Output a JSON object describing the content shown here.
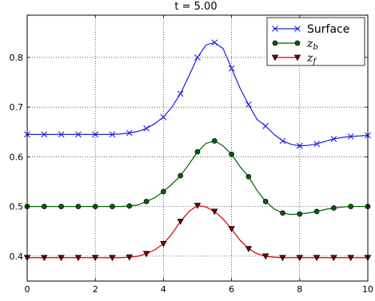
{
  "chart_data": {
    "type": "line",
    "title": "t = 5.00",
    "xlabel": "",
    "ylabel": "",
    "xlim": [
      0,
      10
    ],
    "ylim": [
      0.35,
      0.885
    ],
    "xticks": [
      0,
      2,
      4,
      6,
      8,
      10
    ],
    "yticks": [
      0.4,
      0.5,
      0.6,
      0.7,
      0.8
    ],
    "grid": true,
    "grid_style": "dotted",
    "legend_position": "top-right",
    "x": [
      0.0,
      0.25,
      0.5,
      0.75,
      1.0,
      1.25,
      1.5,
      1.75,
      2.0,
      2.25,
      2.5,
      2.75,
      3.0,
      3.25,
      3.5,
      3.75,
      4.0,
      4.25,
      4.5,
      4.75,
      5.0,
      5.25,
      5.5,
      5.75,
      6.0,
      6.25,
      6.5,
      6.75,
      7.0,
      7.25,
      7.5,
      7.75,
      8.0,
      8.25,
      8.5,
      8.75,
      9.0,
      9.25,
      9.5,
      9.75,
      10.0
    ],
    "series": [
      {
        "name": "Surface",
        "color": "#1f1fe0",
        "marker": "x",
        "marker_every": 2,
        "values": [
          0.645,
          0.645,
          0.645,
          0.645,
          0.645,
          0.645,
          0.645,
          0.645,
          0.645,
          0.645,
          0.645,
          0.646,
          0.648,
          0.651,
          0.657,
          0.667,
          0.68,
          0.7,
          0.727,
          0.763,
          0.8,
          0.825,
          0.83,
          0.818,
          0.778,
          0.738,
          0.705,
          0.675,
          0.662,
          0.645,
          0.632,
          0.625,
          0.622,
          0.623,
          0.626,
          0.631,
          0.636,
          0.639,
          0.641,
          0.642,
          0.643
        ]
      },
      {
        "name": "z_b",
        "label_base": "z",
        "label_sub": "b",
        "color": "#006400",
        "marker_face": "#006400",
        "marker": "o",
        "marker_every": 2,
        "values": [
          0.5,
          0.5,
          0.5,
          0.5,
          0.5,
          0.5,
          0.5,
          0.5,
          0.5,
          0.5,
          0.5,
          0.5,
          0.501,
          0.503,
          0.51,
          0.518,
          0.53,
          0.545,
          0.562,
          0.585,
          0.61,
          0.627,
          0.632,
          0.622,
          0.605,
          0.58,
          0.56,
          0.532,
          0.51,
          0.495,
          0.487,
          0.484,
          0.485,
          0.487,
          0.49,
          0.494,
          0.497,
          0.499,
          0.5,
          0.5,
          0.5
        ]
      },
      {
        "name": "z_f",
        "label_base": "z",
        "label_sub": "f",
        "color": "#d00000",
        "marker_face": "#7a0000",
        "marker": "v",
        "marker_every": 2,
        "values": [
          0.397,
          0.397,
          0.397,
          0.397,
          0.397,
          0.397,
          0.397,
          0.397,
          0.397,
          0.397,
          0.397,
          0.397,
          0.398,
          0.4,
          0.405,
          0.413,
          0.425,
          0.445,
          0.47,
          0.49,
          0.502,
          0.499,
          0.49,
          0.475,
          0.455,
          0.432,
          0.415,
          0.405,
          0.4,
          0.398,
          0.397,
          0.397,
          0.397,
          0.397,
          0.397,
          0.397,
          0.397,
          0.397,
          0.397,
          0.397,
          0.397
        ]
      }
    ]
  }
}
